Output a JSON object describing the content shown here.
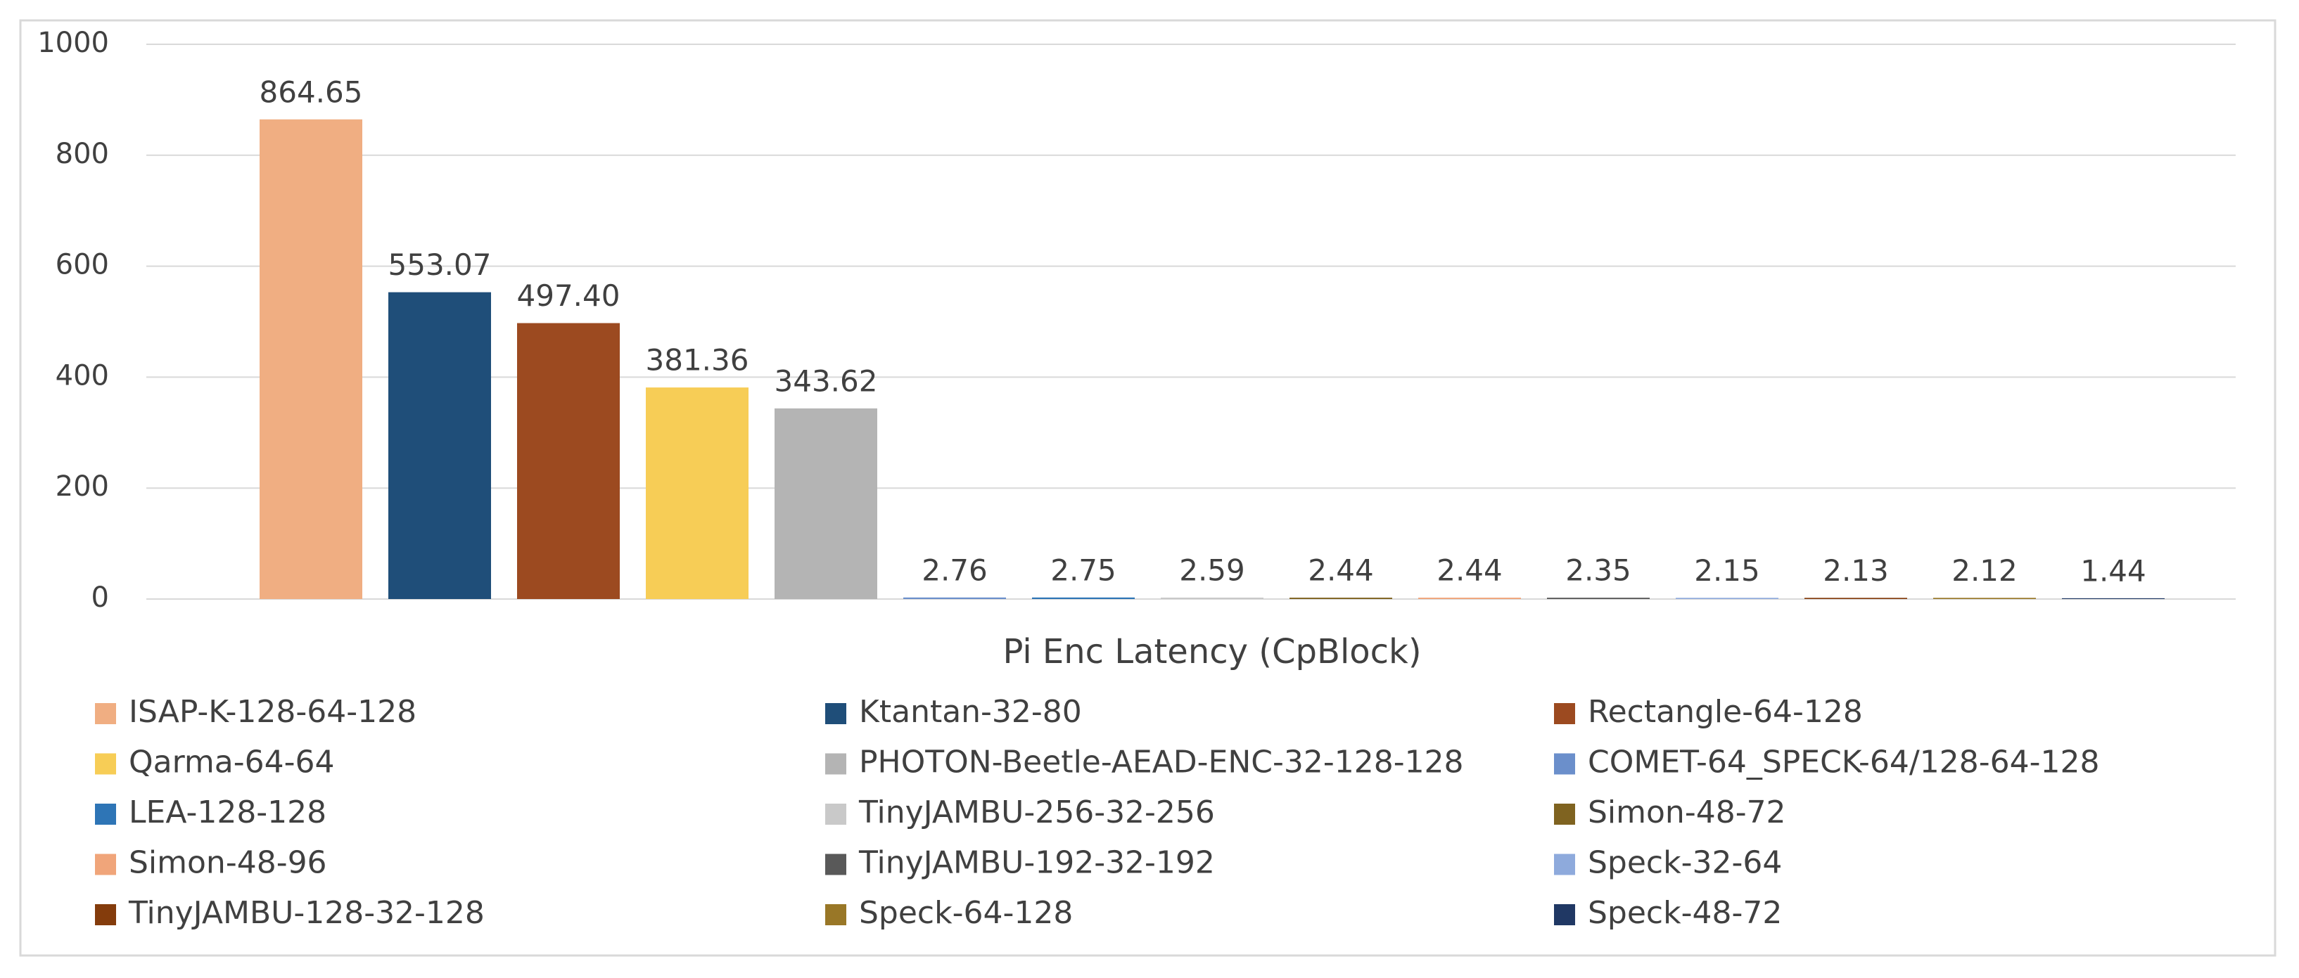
{
  "chart_data": {
    "type": "bar",
    "categories": [
      "Pi Enc Latency (CpBlock)"
    ],
    "ylim": [
      0,
      1000
    ],
    "yticks": [
      0,
      200,
      400,
      600,
      800,
      1000
    ],
    "grid": true,
    "legend": "bottom",
    "series": [
      {
        "name": "ISAP-K-128-64-128",
        "color": "#f0ae82",
        "values": [
          864.65
        ],
        "value_labels": [
          "864.65"
        ]
      },
      {
        "name": "Ktantan-32-80",
        "color": "#1f4e79",
        "values": [
          553.07
        ],
        "value_labels": [
          "553.07"
        ]
      },
      {
        "name": "Rectangle-64-128",
        "color": "#9c4a20",
        "values": [
          497.4
        ],
        "value_labels": [
          "497.40"
        ]
      },
      {
        "name": "Qarma-64-64",
        "color": "#f7cd56",
        "values": [
          381.36
        ],
        "value_labels": [
          "381.36"
        ]
      },
      {
        "name": "PHOTON-Beetle-AEAD-ENC-32-128-128",
        "color": "#b4b4b4",
        "values": [
          343.62
        ],
        "value_labels": [
          "343.62"
        ]
      },
      {
        "name": "COMET-64_SPECK-64/128-64-128",
        "color": "#6b8fcb",
        "values": [
          2.76
        ],
        "value_labels": [
          "2.76"
        ]
      },
      {
        "name": "LEA-128-128",
        "color": "#2e75b6",
        "values": [
          2.75
        ],
        "value_labels": [
          "2.75"
        ]
      },
      {
        "name": "TinyJAMBU-256-32-256",
        "color": "#c9c9c9",
        "values": [
          2.59
        ],
        "value_labels": [
          "2.59"
        ]
      },
      {
        "name": "Simon-48-72",
        "color": "#7f6320",
        "values": [
          2.44
        ],
        "value_labels": [
          "2.44"
        ]
      },
      {
        "name": "Simon-48-96",
        "color": "#f0a57a",
        "values": [
          2.44
        ],
        "value_labels": [
          "2.44"
        ]
      },
      {
        "name": "TinyJAMBU-192-32-192",
        "color": "#595959",
        "values": [
          2.35
        ],
        "value_labels": [
          "2.35"
        ]
      },
      {
        "name": "Speck-32-64",
        "color": "#8eaadc",
        "values": [
          2.15
        ],
        "value_labels": [
          "2.15"
        ]
      },
      {
        "name": "TinyJAMBU-128-32-128",
        "color": "#843c0c",
        "values": [
          2.13
        ],
        "value_labels": [
          "2.13"
        ]
      },
      {
        "name": "Speck-64-128",
        "color": "#997727",
        "values": [
          2.12
        ],
        "value_labels": [
          "2.12"
        ]
      },
      {
        "name": "Speck-48-72",
        "color": "#203864",
        "values": [
          1.44
        ],
        "value_labels": [
          "1.44"
        ]
      }
    ]
  }
}
